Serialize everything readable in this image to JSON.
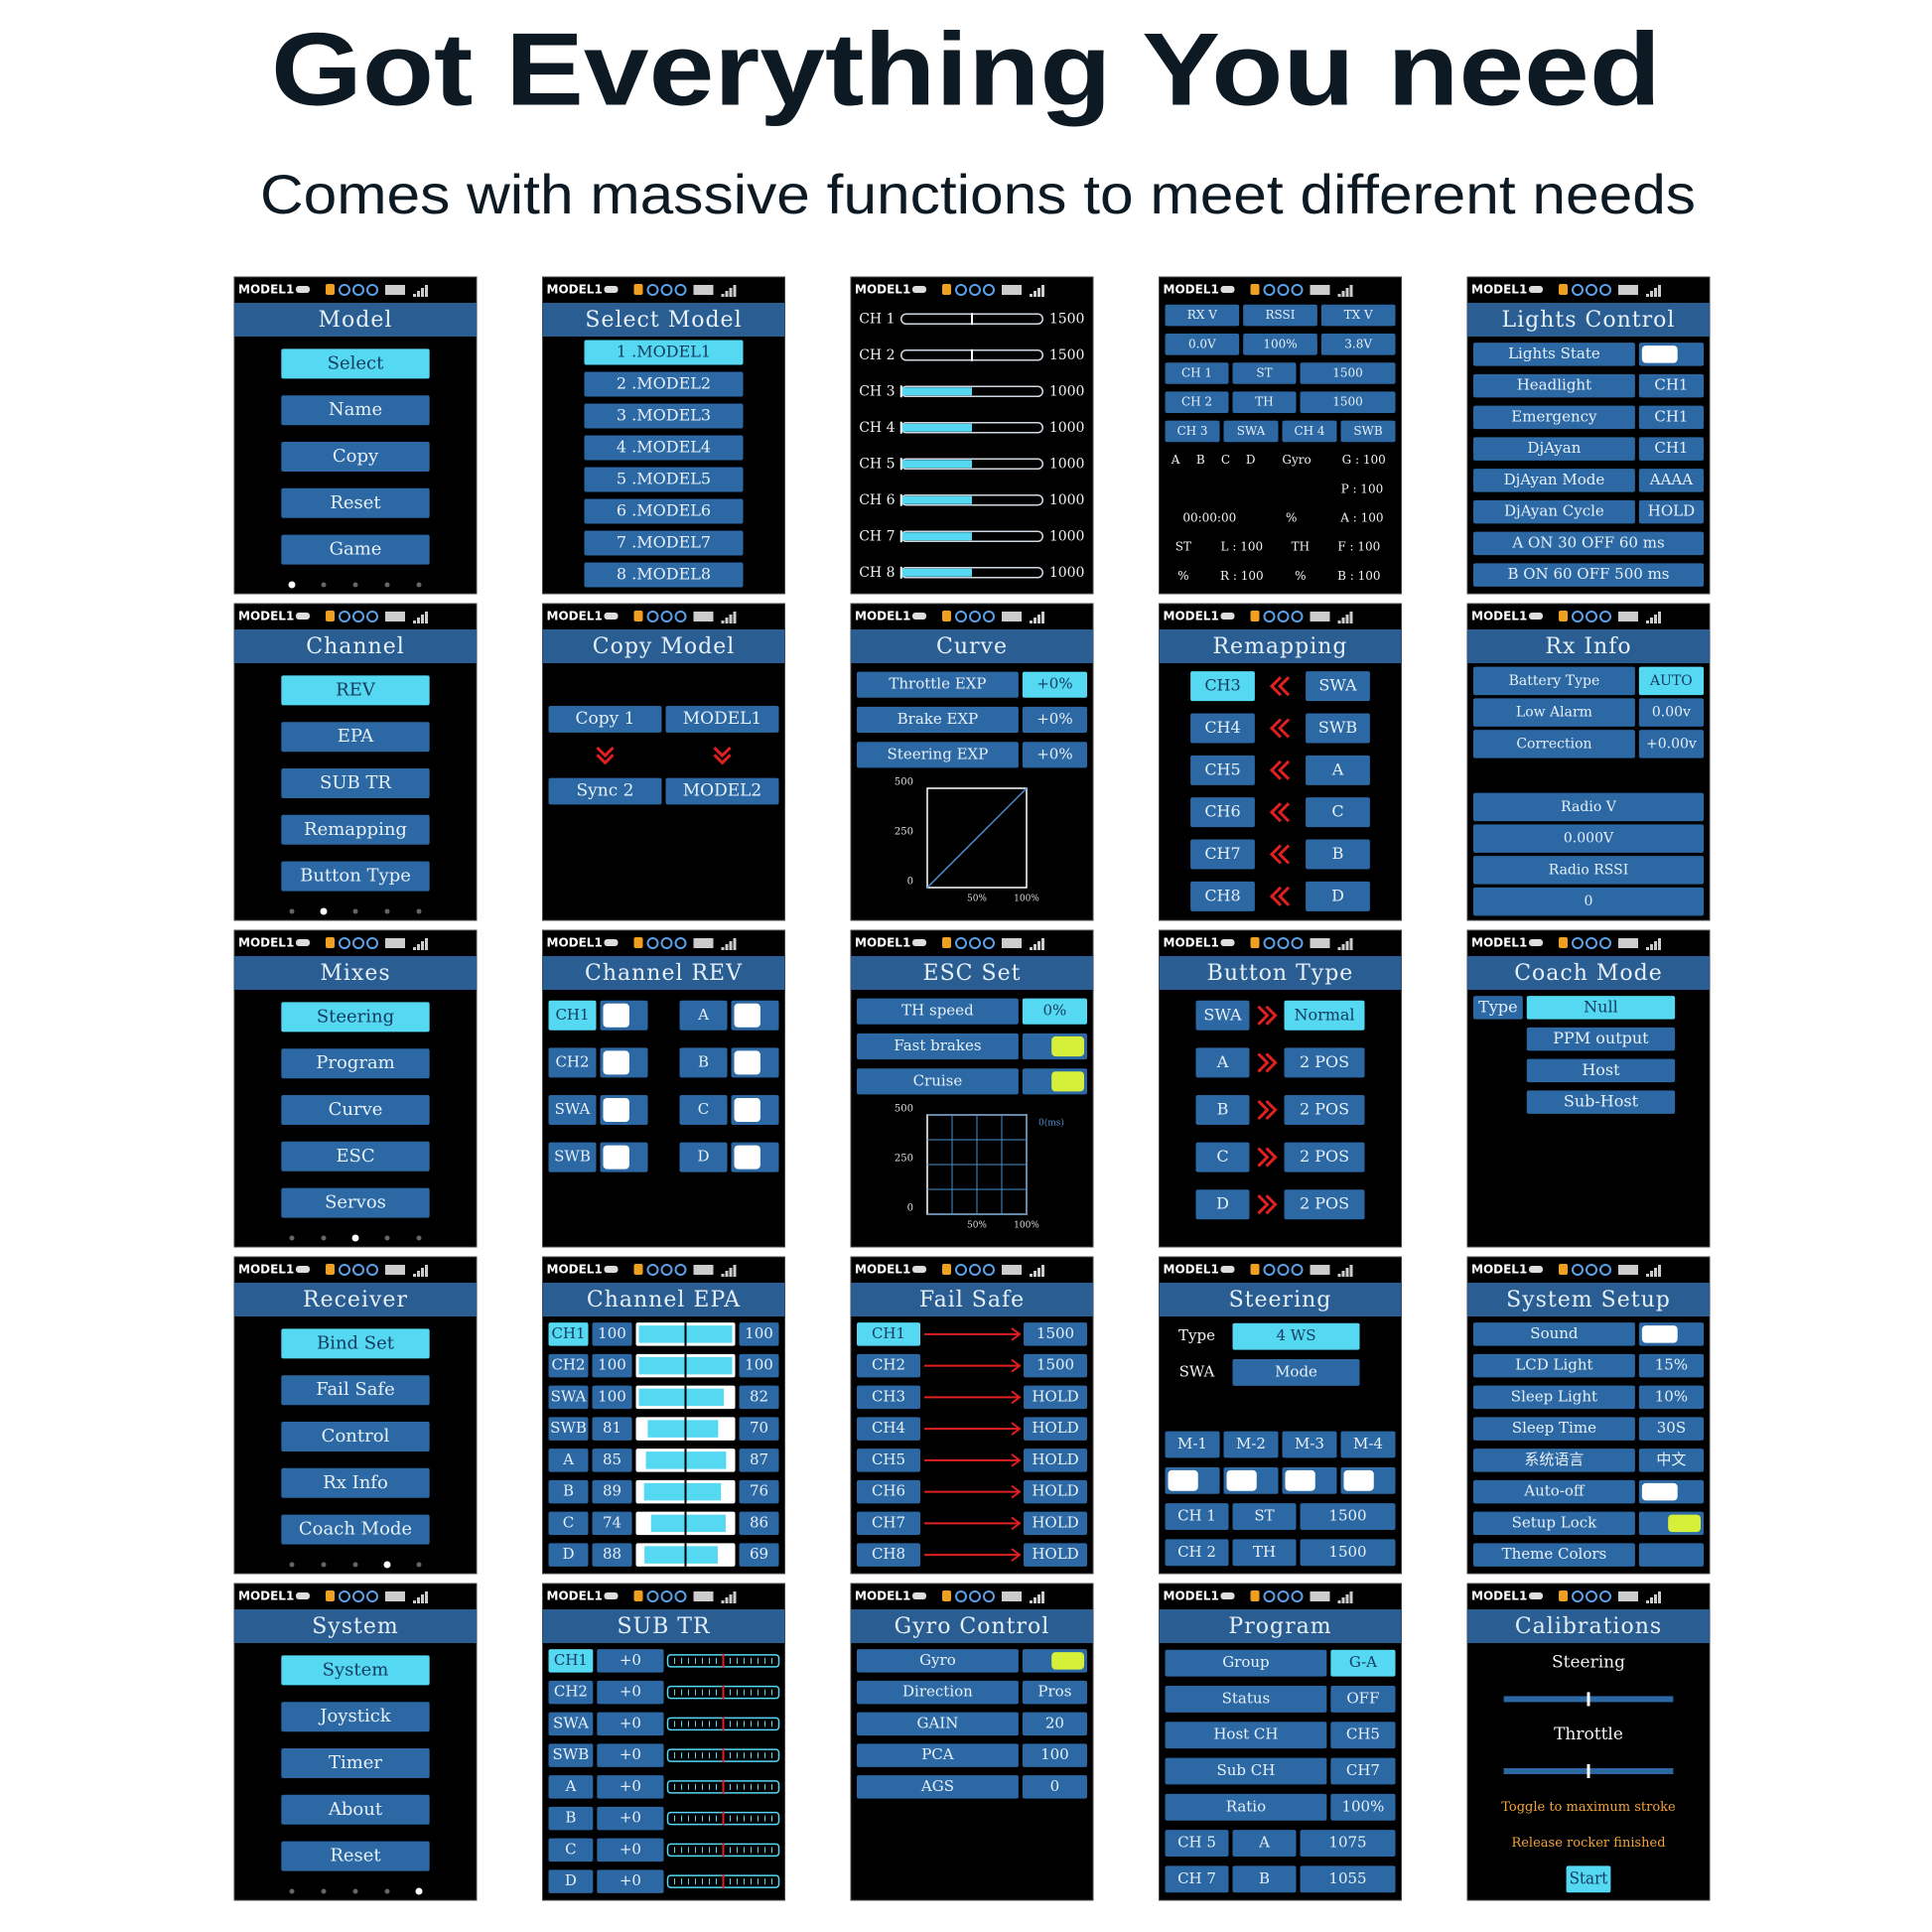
{
  "header": {
    "title": "Got Everything You need",
    "subtitle": "Comes with massive functions to meet different needs"
  },
  "status_model": "MODEL1",
  "screens": [
    {
      "title": "Model",
      "rows": [
        [
          "Select"
        ],
        [
          "Name"
        ],
        [
          "Copy"
        ],
        [
          "Reset"
        ],
        [
          "Game"
        ]
      ],
      "page": 0
    },
    {
      "title": "Select Model",
      "rows": [
        [
          "1 .MODEL1"
        ],
        [
          "2 .MODEL2"
        ],
        [
          "3 .MODEL3"
        ],
        [
          "4 .MODEL4"
        ],
        [
          "5 .MODEL5"
        ],
        [
          "6 .MODEL6"
        ],
        [
          "7 .MODEL7"
        ],
        [
          "8 .MODEL8"
        ]
      ]
    },
    {
      "rows": [
        [
          "CH 1",
          1500
        ],
        [
          "CH 2",
          1500
        ],
        [
          "CH 3",
          1000
        ],
        [
          "CH 4",
          1000
        ],
        [
          "CH 5",
          1000
        ],
        [
          "CH 6",
          1000
        ],
        [
          "CH 7",
          1000
        ],
        [
          "CH 8",
          1000
        ]
      ],
      "lim": [
        1000,
        2000
      ]
    },
    {
      "rows": [
        [
          "RX V",
          "RSSI",
          "TX V"
        ],
        [
          "0.0V",
          "100%",
          "3.8V"
        ],
        [
          "CH 1",
          "ST",
          1500
        ],
        [
          "CH 2",
          "TH",
          1500
        ],
        [
          "CH 3",
          "SWA",
          "CH 4",
          "SWB"
        ],
        [
          "A",
          "B",
          "C",
          "D",
          "Gyro",
          "G : 100"
        ],
        [
          "P : 100"
        ],
        [
          "00:00:00",
          "%",
          "A : 100"
        ],
        [
          "ST",
          "L : 100",
          "TH",
          "F : 100"
        ],
        [
          "%",
          "R : 100",
          "%",
          "B : 100"
        ]
      ]
    },
    {
      "title": "Lights Control",
      "rows": [
        [
          "Lights State"
        ],
        [
          "Headlight",
          "CH1"
        ],
        [
          "Emergency",
          "CH1"
        ],
        [
          "DjAyan",
          "CH1"
        ],
        [
          "DjAyan Mode",
          "AAAA"
        ],
        [
          "DjAyan Cycle",
          "HOLD"
        ],
        [
          "A ON  30 OFF  60 ms"
        ],
        [
          "B ON  60 OFF  500 ms"
        ]
      ]
    },
    {
      "title": "Channel",
      "rows": [
        [
          "REV"
        ],
        [
          "EPA"
        ],
        [
          "SUB TR"
        ],
        [
          "Remapping"
        ],
        [
          "Button Type"
        ]
      ],
      "page": 1
    },
    {
      "title": "Copy Model",
      "rows": [
        [
          "Copy 1",
          "MODEL1"
        ],
        [
          "Sync 2",
          "MODEL2"
        ]
      ]
    },
    {
      "title": "Curve",
      "rows": [
        [
          "Throttle EXP",
          "+0%"
        ],
        [
          "Brake EXP",
          "+0%"
        ],
        [
          "Steering EXP",
          "+0%"
        ]
      ],
      "graph": {
        "xlim": [
          0,
          100
        ],
        "ylim": [
          0,
          500
        ],
        "yticks": [
          0,
          250,
          500
        ],
        "xticks": [
          {
            "value": 50,
            "label": "50%"
          },
          {
            "value": 100,
            "label": "100%"
          }
        ],
        "grid": false
      }
    },
    {
      "title": "Remapping",
      "rows": [
        [
          "CH3",
          "SWA"
        ],
        [
          "CH4",
          "SWB"
        ],
        [
          "CH5",
          "A"
        ],
        [
          "CH6",
          "C"
        ],
        [
          "CH7",
          "B"
        ],
        [
          "CH8",
          "D"
        ]
      ]
    },
    {
      "title": "Rx Info",
      "rows": [
        [
          "Battery Type",
          "AUTO"
        ],
        [
          "Low Alarm",
          "0.00v"
        ],
        [
          "Correction",
          "+0.00v"
        ],
        [
          "Radio V"
        ],
        [
          "0.000V"
        ],
        [
          "Radio RSSI"
        ],
        [
          0
        ]
      ]
    },
    {
      "title": "Mixes",
      "rows": [
        [
          "Steering"
        ],
        [
          "Program"
        ],
        [
          "Curve"
        ],
        [
          "ESC"
        ],
        [
          "Servos"
        ]
      ],
      "page": 2
    },
    {
      "title": "Channel REV",
      "rows": [
        [
          "CH1",
          "A"
        ],
        [
          "CH2",
          "B"
        ],
        [
          "SWA",
          "C"
        ],
        [
          "SWB",
          "D"
        ]
      ]
    },
    {
      "title": "ESC Set",
      "rows": [
        [
          "TH speed",
          "0%"
        ],
        [
          "Fast brakes"
        ],
        [
          "Cruise"
        ]
      ],
      "graph": {
        "xlim": [
          0,
          100
        ],
        "ylim": [
          0,
          500
        ],
        "yticks": [
          0,
          250,
          500
        ],
        "xticks": [
          {
            "value": 50,
            "label": "50%"
          },
          {
            "value": 100,
            "label": "100%"
          }
        ],
        "grid": true,
        "note": "0(ms)"
      }
    },
    {
      "title": "Button Type",
      "rows": [
        [
          "SWA",
          "Normal"
        ],
        [
          "A",
          "2 POS"
        ],
        [
          "B",
          "2 POS"
        ],
        [
          "C",
          "2 POS"
        ],
        [
          "D",
          "2 POS"
        ]
      ]
    },
    {
      "title": "Coach Mode",
      "rows": [
        [
          "Type",
          "Null"
        ],
        [
          "PPM output"
        ],
        [
          "Host"
        ],
        [
          "Sub-Host"
        ]
      ]
    },
    {
      "title": "Receiver",
      "rows": [
        [
          "Bind Set"
        ],
        [
          "Fail Safe"
        ],
        [
          "Control"
        ],
        [
          "Rx Info"
        ],
        [
          "Coach Mode"
        ]
      ],
      "page": 3
    },
    {
      "title": "Channel EPA",
      "rows": [
        [
          "CH1",
          100,
          100
        ],
        [
          "CH2",
          100,
          100
        ],
        [
          "SWA",
          100,
          82
        ],
        [
          "SWB",
          81,
          70
        ],
        [
          "A",
          85,
          87
        ],
        [
          "B",
          89,
          76
        ],
        [
          "C",
          74,
          86
        ],
        [
          "D",
          88,
          69
        ]
      ],
      "lim": [
        0,
        100
      ]
    },
    {
      "title": "Fail Safe",
      "rows": [
        [
          "CH1",
          1500
        ],
        [
          "CH2",
          1500
        ],
        [
          "CH3",
          "HOLD"
        ],
        [
          "CH4",
          "HOLD"
        ],
        [
          "CH5",
          "HOLD"
        ],
        [
          "CH6",
          "HOLD"
        ],
        [
          "CH7",
          "HOLD"
        ],
        [
          "CH8",
          "HOLD"
        ]
      ]
    },
    {
      "title": "Steering",
      "rows": [
        [
          "Type",
          "4 WS"
        ],
        [
          "SWA",
          "Mode"
        ],
        [
          "M-1",
          "M-2",
          "M-3",
          "M-4"
        ],
        [
          "CH 1",
          "ST",
          1500
        ],
        [
          "CH 2",
          "TH",
          1500
        ]
      ]
    },
    {
      "title": "System Setup",
      "rows": [
        [
          "Sound"
        ],
        [
          "LCD Light",
          "15%"
        ],
        [
          "Sleep Light",
          "10%"
        ],
        [
          "Sleep Time",
          "30S"
        ],
        [
          "系统语言",
          "中文"
        ],
        [
          "Auto-off"
        ],
        [
          "Setup Lock"
        ],
        [
          "Theme Colors"
        ]
      ]
    },
    {
      "title": "System",
      "rows": [
        [
          "System"
        ],
        [
          "Joystick"
        ],
        [
          "Timer"
        ],
        [
          "About"
        ],
        [
          "Reset"
        ]
      ],
      "page": 4
    },
    {
      "title": "SUB TR",
      "rows": [
        [
          "CH1",
          "+0"
        ],
        [
          "CH2",
          "+0"
        ],
        [
          "SWA",
          "+0"
        ],
        [
          "SWB",
          "+0"
        ],
        [
          "A",
          "+0"
        ],
        [
          "B",
          "+0"
        ],
        [
          "C",
          "+0"
        ],
        [
          "D",
          "+0"
        ]
      ]
    },
    {
      "title": "Gyro Control",
      "rows": [
        [
          "Gyro"
        ],
        [
          "Direction",
          "Pros"
        ],
        [
          "GAIN",
          20
        ],
        [
          "PCA",
          100
        ],
        [
          "AGS",
          0
        ]
      ]
    },
    {
      "title": "Program",
      "rows": [
        [
          "Group",
          "G-A"
        ],
        [
          "Status",
          "OFF"
        ],
        [
          "Host CH",
          "CH5"
        ],
        [
          "Sub CH",
          "CH7"
        ],
        [
          "Ratio",
          "100%"
        ],
        [
          "CH 5",
          "A",
          1075
        ],
        [
          "CH 7",
          "B",
          1055
        ]
      ]
    },
    {
      "title": "Calibrations",
      "rows": [
        [
          "Steering"
        ],
        [
          "Throttle"
        ],
        [
          "Toggle to maximum stroke"
        ],
        [
          "Release rocker finished"
        ],
        [
          "Start"
        ]
      ]
    }
  ]
}
